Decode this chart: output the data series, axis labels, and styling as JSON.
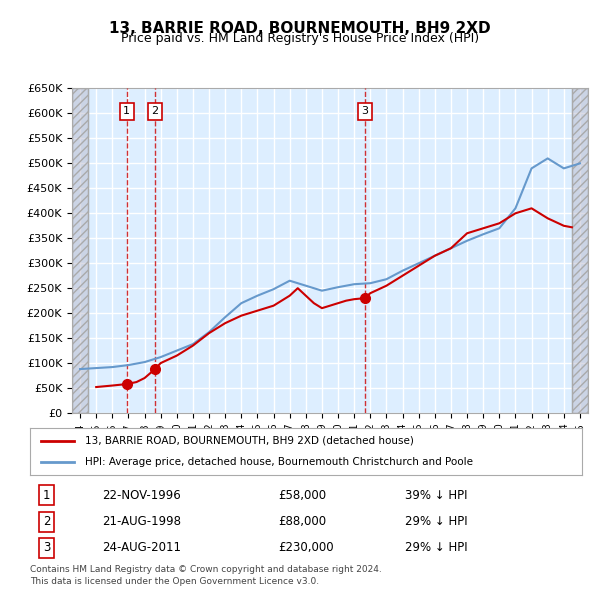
{
  "title": "13, BARRIE ROAD, BOURNEMOUTH, BH9 2XD",
  "subtitle": "Price paid vs. HM Land Registry's House Price Index (HPI)",
  "legend_line1": "13, BARRIE ROAD, BOURNEMOUTH, BH9 2XD (detached house)",
  "legend_line2": "HPI: Average price, detached house, Bournemouth Christchurch and Poole",
  "footnote1": "Contains HM Land Registry data © Crown copyright and database right 2024.",
  "footnote2": "This data is licensed under the Open Government Licence v3.0.",
  "transactions": [
    {
      "num": 1,
      "date": "22-NOV-1996",
      "price": 58000,
      "pct": "39% ↓ HPI",
      "year": 1996.9
    },
    {
      "num": 2,
      "date": "21-AUG-1998",
      "price": 88000,
      "pct": "29% ↓ HPI",
      "year": 1998.65
    },
    {
      "num": 3,
      "date": "24-AUG-2011",
      "price": 230000,
      "pct": "29% ↓ HPI",
      "year": 2011.65
    }
  ],
  "hpi_color": "#6699cc",
  "price_color": "#cc0000",
  "vline_color": "#cc0000",
  "background_color": "#ffffff",
  "plot_bg_color": "#ddeeff",
  "grid_color": "#ffffff",
  "hatch_color": "#bbbbcc",
  "ylim": [
    0,
    650000
  ],
  "yticks": [
    0,
    50000,
    100000,
    150000,
    200000,
    250000,
    300000,
    350000,
    400000,
    450000,
    500000,
    550000,
    600000,
    650000
  ],
  "xlim_start": 1993.5,
  "xlim_end": 2025.5
}
